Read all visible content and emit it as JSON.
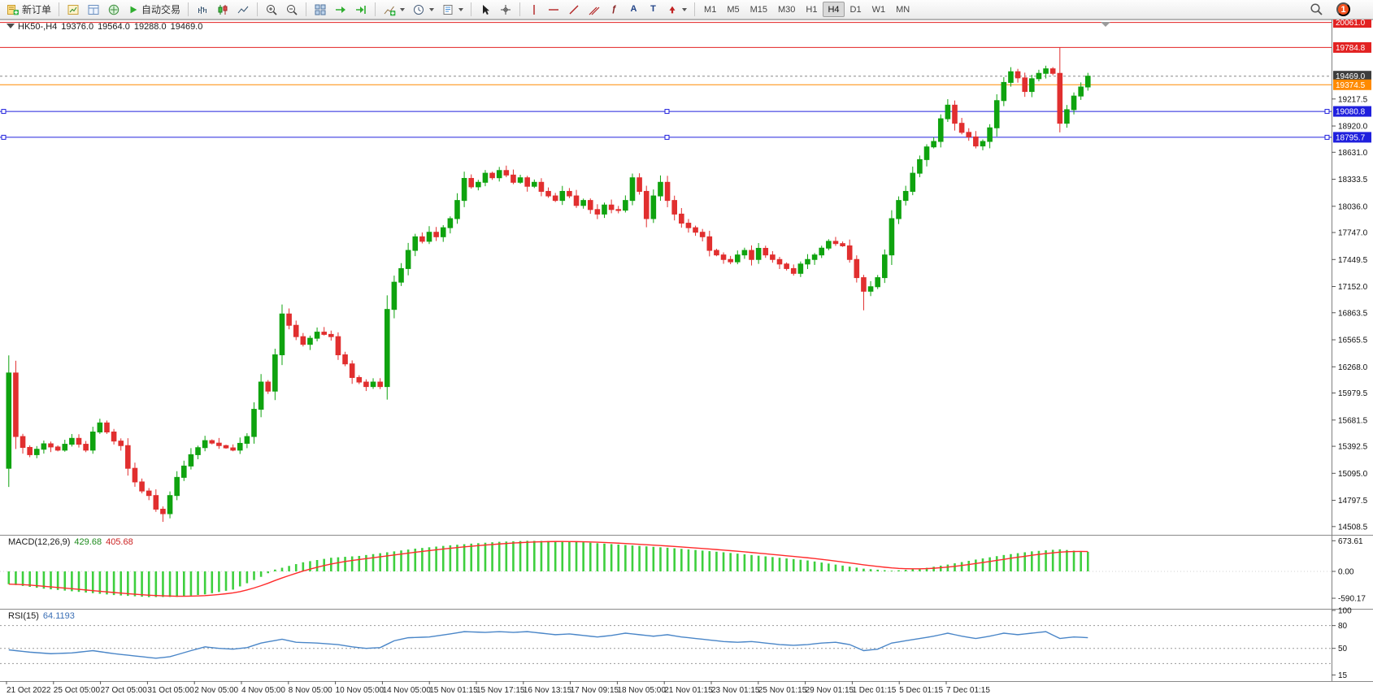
{
  "toolbar": {
    "new_order_label": "新订单",
    "autotrading_label": "自动交易",
    "timeframes": [
      "M1",
      "M5",
      "M15",
      "M30",
      "H1",
      "H4",
      "D1",
      "W1",
      "MN"
    ],
    "active_timeframe": "H4",
    "badge_count": "1"
  },
  "chart": {
    "title": "HK50-,H4",
    "ohlc": {
      "open": "19376.0",
      "high": "19564.0",
      "low": "19288.0",
      "close": "19469.0"
    },
    "colors": {
      "up": "#0fa30f",
      "down": "#e12f2f",
      "macd_hist": "#3ecf3e",
      "macd_signal": "#ff2b2b",
      "rsi_line": "#4a86c8",
      "line_red": "#e22222",
      "line_orange": "#ff8a00",
      "line_blue": "#2020dd",
      "current_bg": "#3d3d3d",
      "axis_line": "#808080"
    },
    "hlines": [
      {
        "price": 20061.0,
        "label": "20061.0",
        "type": "red"
      },
      {
        "price": 19784.8,
        "label": "19784.8",
        "type": "red"
      },
      {
        "price": 19469.0,
        "label": "19469.0",
        "type": "current"
      },
      {
        "price": 19374.5,
        "label": "19374.5",
        "type": "orange"
      },
      {
        "price": 19080.8,
        "label": "19080.8",
        "type": "blue",
        "handles": true
      },
      {
        "price": 18795.7,
        "label": "18795.7",
        "type": "blue",
        "handles": true
      }
    ],
    "price_axis": {
      "ticks": [
        "19217.5",
        "18920.0",
        "18631.0",
        "18333.5",
        "18036.0",
        "17747.0",
        "17449.5",
        "17152.0",
        "16863.5",
        "16565.5",
        "16268.0",
        "15979.5",
        "15681.5",
        "15392.5",
        "15095.0",
        "14797.5",
        "14508.5"
      ]
    },
    "time_axis": {
      "labels": [
        "21 Oct 2022",
        "25 Oct 05:00",
        "27 Oct 05:00",
        "31 Oct 05:00",
        "2 Nov 05:00",
        "4 Nov 05:00",
        "8 Nov 05:00",
        "10 Nov 05:00",
        "14 Nov 05:00",
        "15 Nov 01:15",
        "15 Nov 17:15",
        "16 Nov 13:15",
        "17 Nov 09:15",
        "18 Nov 05:00",
        "21 Nov 01:15",
        "23 Nov 01:15",
        "25 Nov 01:15",
        "29 Nov 01:15",
        "1 Dec 01:15",
        "5 Dec 01:15",
        "7 Dec 01:15"
      ]
    }
  },
  "macd_panel": {
    "name": "MACD(12,26,9)",
    "v1": "429.68",
    "v2": "405.68",
    "axis": [
      "673.61",
      "0.00",
      "-590.17"
    ]
  },
  "rsi_panel": {
    "name": "RSI(15)",
    "value": "64.1193",
    "axis": [
      "100",
      "80",
      "50",
      "15"
    ],
    "levels": [
      80,
      50,
      30
    ]
  },
  "chart_data": {
    "type": "candlestick",
    "symbol": "HK50-",
    "period": "H4",
    "bars": 155,
    "first_open": 15150,
    "price_range_visible": [
      14508.5,
      20061.0
    ],
    "close_waypoints": [
      [
        0,
        16200
      ],
      [
        1,
        15500
      ],
      [
        2,
        15380
      ],
      [
        3,
        15300
      ],
      [
        5,
        15420
      ],
      [
        7,
        15350
      ],
      [
        9,
        15480
      ],
      [
        11,
        15350
      ],
      [
        12,
        15550
      ],
      [
        13,
        15650
      ],
      [
        15,
        15450
      ],
      [
        16,
        15400
      ],
      [
        17,
        15150
      ],
      [
        18,
        15000
      ],
      [
        19,
        14900
      ],
      [
        20,
        14850
      ],
      [
        21,
        14700
      ],
      [
        22,
        14650
      ],
      [
        23,
        14850
      ],
      [
        24,
        15050
      ],
      [
        26,
        15300
      ],
      [
        28,
        15455
      ],
      [
        30,
        15400
      ],
      [
        32,
        15350
      ],
      [
        34,
        15500
      ],
      [
        36,
        16100
      ],
      [
        37,
        16000
      ],
      [
        38,
        16400
      ],
      [
        39,
        16850
      ],
      [
        41,
        16600
      ],
      [
        42,
        16515
      ],
      [
        44,
        16650
      ],
      [
        46,
        16600
      ],
      [
        47,
        16400
      ],
      [
        48,
        16300
      ],
      [
        49,
        16150
      ],
      [
        50,
        16100
      ],
      [
        51,
        16050
      ],
      [
        52,
        16100
      ],
      [
        53,
        16050
      ],
      [
        54,
        16900
      ],
      [
        55,
        17200
      ],
      [
        56,
        17350
      ],
      [
        57,
        17550
      ],
      [
        58,
        17700
      ],
      [
        59,
        17650
      ],
      [
        60,
        17750
      ],
      [
        61,
        17700
      ],
      [
        62,
        17800
      ],
      [
        63,
        17900
      ],
      [
        64,
        18100
      ],
      [
        65,
        18343
      ],
      [
        66,
        18250
      ],
      [
        67,
        18300
      ],
      [
        68,
        18400
      ],
      [
        69,
        18350
      ],
      [
        70,
        18430
      ],
      [
        71,
        18380
      ],
      [
        72,
        18300
      ],
      [
        73,
        18350
      ],
      [
        74,
        18256
      ],
      [
        75,
        18300
      ],
      [
        76,
        18200
      ],
      [
        77,
        18150
      ],
      [
        78,
        18100
      ],
      [
        79,
        18200
      ],
      [
        80,
        18150
      ],
      [
        81,
        18045
      ],
      [
        82,
        18100
      ],
      [
        83,
        18000
      ],
      [
        84,
        17950
      ],
      [
        85,
        18050
      ],
      [
        86,
        18000
      ],
      [
        87,
        17993
      ],
      [
        88,
        18100
      ],
      [
        89,
        18350
      ],
      [
        90,
        18200
      ],
      [
        91,
        17900
      ],
      [
        92,
        18150
      ],
      [
        93,
        18300
      ],
      [
        94,
        18100
      ],
      [
        95,
        17950
      ],
      [
        96,
        17850
      ],
      [
        97,
        17800
      ],
      [
        98,
        17750
      ],
      [
        99,
        17700
      ],
      [
        100,
        17550
      ],
      [
        101,
        17500
      ],
      [
        102,
        17450
      ],
      [
        103,
        17424
      ],
      [
        104,
        17500
      ],
      [
        105,
        17550
      ],
      [
        106,
        17450
      ],
      [
        107,
        17573
      ],
      [
        108,
        17500
      ],
      [
        109,
        17450
      ],
      [
        110,
        17400
      ],
      [
        111,
        17350
      ],
      [
        112,
        17297
      ],
      [
        113,
        17400
      ],
      [
        115,
        17500
      ],
      [
        117,
        17650
      ],
      [
        119,
        17600
      ],
      [
        120,
        17450
      ],
      [
        121,
        17250
      ],
      [
        122,
        17100
      ],
      [
        123,
        17150
      ],
      [
        124,
        17250
      ],
      [
        125,
        17500
      ],
      [
        126,
        17900
      ],
      [
        127,
        18100
      ],
      [
        128,
        18200
      ],
      [
        129,
        18400
      ],
      [
        130,
        18550
      ],
      [
        131,
        18690
      ],
      [
        132,
        18750
      ],
      [
        133,
        19000
      ],
      [
        134,
        19150
      ],
      [
        135,
        18950
      ],
      [
        136,
        18850
      ],
      [
        137,
        18800
      ],
      [
        138,
        18700
      ],
      [
        139,
        18750
      ],
      [
        140,
        18900
      ],
      [
        141,
        19200
      ],
      [
        142,
        19400
      ],
      [
        143,
        19518
      ],
      [
        144,
        19450
      ],
      [
        145,
        19300
      ],
      [
        146,
        19441
      ],
      [
        147,
        19500
      ],
      [
        148,
        19550
      ],
      [
        149,
        19500
      ],
      [
        150,
        18950
      ],
      [
        151,
        19100
      ],
      [
        152,
        19250
      ],
      [
        153,
        19350
      ],
      [
        154,
        19469
      ]
    ],
    "spikes": [
      {
        "i": 0,
        "low": 15080
      },
      {
        "i": 22,
        "low": 14560
      },
      {
        "i": 39,
        "high": 16900
      },
      {
        "i": 122,
        "low": 16890
      },
      {
        "i": 150,
        "high": 19784
      }
    ],
    "macd_waypoints": [
      [
        0,
        -280
      ],
      [
        5,
        -380
      ],
      [
        10,
        -450
      ],
      [
        15,
        -520
      ],
      [
        20,
        -565
      ],
      [
        24,
        -560
      ],
      [
        28,
        -505
      ],
      [
        32,
        -400
      ],
      [
        36,
        -120
      ],
      [
        38,
        40
      ],
      [
        42,
        200
      ],
      [
        46,
        300
      ],
      [
        50,
        340
      ],
      [
        54,
        420
      ],
      [
        58,
        500
      ],
      [
        62,
        560
      ],
      [
        66,
        610
      ],
      [
        70,
        650
      ],
      [
        74,
        673
      ],
      [
        78,
        665
      ],
      [
        82,
        640
      ],
      [
        86,
        600
      ],
      [
        90,
        560
      ],
      [
        94,
        520
      ],
      [
        98,
        470
      ],
      [
        102,
        420
      ],
      [
        106,
        360
      ],
      [
        110,
        300
      ],
      [
        114,
        240
      ],
      [
        118,
        150
      ],
      [
        122,
        60
      ],
      [
        126,
        15
      ],
      [
        130,
        55
      ],
      [
        134,
        150
      ],
      [
        138,
        260
      ],
      [
        142,
        360
      ],
      [
        146,
        440
      ],
      [
        150,
        485
      ],
      [
        152,
        455
      ],
      [
        154,
        430
      ]
    ],
    "rsi_waypoints": [
      [
        0,
        48
      ],
      [
        3,
        45
      ],
      [
        6,
        43
      ],
      [
        9,
        44
      ],
      [
        12,
        47
      ],
      [
        15,
        43
      ],
      [
        18,
        40
      ],
      [
        21,
        37
      ],
      [
        23,
        39
      ],
      [
        26,
        47
      ],
      [
        28,
        52
      ],
      [
        30,
        50
      ],
      [
        32,
        49
      ],
      [
        34,
        51
      ],
      [
        36,
        57
      ],
      [
        39,
        62
      ],
      [
        41,
        58
      ],
      [
        44,
        57
      ],
      [
        47,
        55
      ],
      [
        49,
        52
      ],
      [
        51,
        50
      ],
      [
        53,
        51
      ],
      [
        55,
        60
      ],
      [
        57,
        64
      ],
      [
        60,
        65
      ],
      [
        63,
        69
      ],
      [
        65,
        72
      ],
      [
        68,
        71
      ],
      [
        70,
        72
      ],
      [
        72,
        71
      ],
      [
        74,
        72
      ],
      [
        76,
        70
      ],
      [
        78,
        68
      ],
      [
        80,
        69
      ],
      [
        82,
        67
      ],
      [
        84,
        65
      ],
      [
        86,
        67
      ],
      [
        88,
        70
      ],
      [
        90,
        68
      ],
      [
        92,
        66
      ],
      [
        94,
        68
      ],
      [
        96,
        65
      ],
      [
        98,
        63
      ],
      [
        100,
        61
      ],
      [
        102,
        59
      ],
      [
        104,
        58
      ],
      [
        106,
        59
      ],
      [
        108,
        57
      ],
      [
        110,
        55
      ],
      [
        112,
        54
      ],
      [
        114,
        55
      ],
      [
        116,
        57
      ],
      [
        118,
        58
      ],
      [
        120,
        55
      ],
      [
        122,
        47
      ],
      [
        124,
        49
      ],
      [
        126,
        57
      ],
      [
        128,
        60
      ],
      [
        130,
        63
      ],
      [
        132,
        66
      ],
      [
        134,
        70
      ],
      [
        136,
        66
      ],
      [
        138,
        63
      ],
      [
        140,
        66
      ],
      [
        142,
        70
      ],
      [
        144,
        68
      ],
      [
        146,
        70
      ],
      [
        148,
        72
      ],
      [
        150,
        63
      ],
      [
        152,
        65
      ],
      [
        154,
        64.1
      ]
    ]
  }
}
